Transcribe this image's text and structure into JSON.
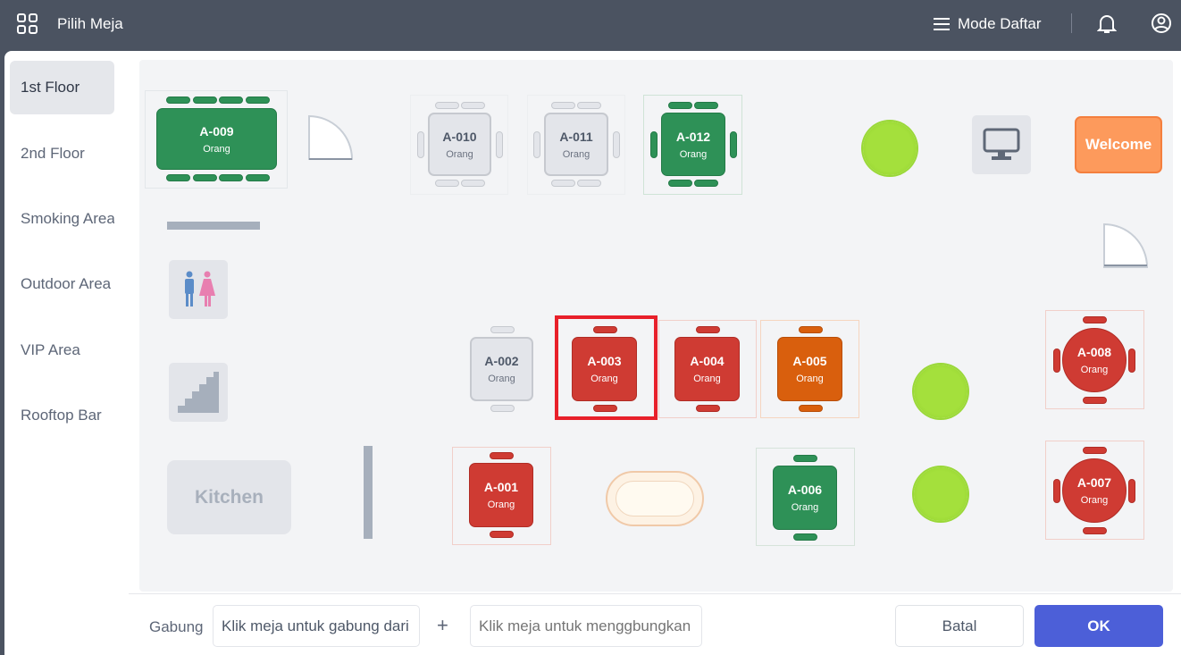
{
  "header": {
    "title": "Pilih Meja",
    "mode_label": "Mode Daftar",
    "icons": [
      "apps-icon",
      "list-icon",
      "bell-icon",
      "user-icon"
    ]
  },
  "sidebar": {
    "items": [
      {
        "label": "1st Floor",
        "selected": true
      },
      {
        "label": "2nd Floor"
      },
      {
        "label": "Smoking Area"
      },
      {
        "label": "Outdoor Area"
      },
      {
        "label": "VIP Area"
      },
      {
        "label": "Rooftop Bar"
      }
    ]
  },
  "colors": {
    "available": "#2e9157",
    "occupied": "#cf3b33",
    "reserved": "#d95f0d",
    "inactive": "#e3e5ea",
    "selected_outline": "#e8202a",
    "primary": "#4c5fd8"
  },
  "tables": {
    "A009": {
      "name": "A-009",
      "sub": "Orang"
    },
    "A010": {
      "name": "A-010",
      "sub": "Orang"
    },
    "A011": {
      "name": "A-011",
      "sub": "Orang"
    },
    "A012": {
      "name": "A-012",
      "sub": "Orang"
    },
    "A002": {
      "name": "A-002",
      "sub": "Orang"
    },
    "A003": {
      "name": "A-003",
      "sub": "Orang"
    },
    "A004": {
      "name": "A-004",
      "sub": "Orang"
    },
    "A005": {
      "name": "A-005",
      "sub": "Orang"
    },
    "A008": {
      "name": "A-008",
      "sub": "Orang"
    },
    "A001": {
      "name": "A-001",
      "sub": "Orang"
    },
    "A006": {
      "name": "A-006",
      "sub": "Orang"
    },
    "A007": {
      "name": "A-007",
      "sub": "Orang"
    }
  },
  "map": {
    "welcome": "Welcome",
    "kitchen": "Kitchen"
  },
  "footer": {
    "merge_label": "Gabung",
    "from_value": "Klik meja untuk gabung dari",
    "plus": "+",
    "to_placeholder": "Klik meja untuk menggbungkan",
    "cancel": "Batal",
    "ok": "OK"
  }
}
